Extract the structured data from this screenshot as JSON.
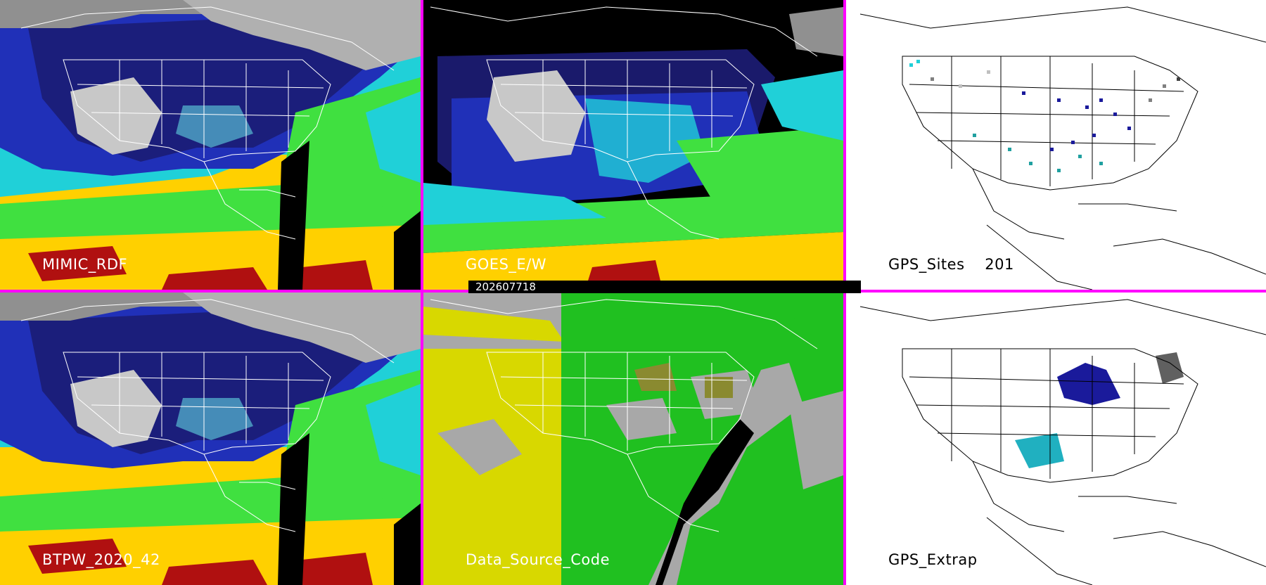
{
  "timestamp": "202607718",
  "panels": {
    "mimic": {
      "label": "MIMIC_RDF"
    },
    "goes": {
      "label": "GOES_E/W"
    },
    "gps_sites": {
      "label": "GPS_Sites",
      "count": "201"
    },
    "btpw": {
      "label": "BTPW_2020_42"
    },
    "source": {
      "label": "Data_Source_Code"
    },
    "gps_extrap": {
      "label": "GPS_Extrap"
    }
  },
  "colors": {
    "separator": "#ff00ff",
    "tpw_dry": "#1a1a6b",
    "tpw_blue": "#2030b8",
    "tpw_cyan": "#20d0d8",
    "tpw_green": "#40e040",
    "tpw_yellow": "#e0d000",
    "tpw_red": "#b01010",
    "source_goes": "#d8d800",
    "source_mimic": "#20c020",
    "source_none": "#a8a8a8"
  }
}
